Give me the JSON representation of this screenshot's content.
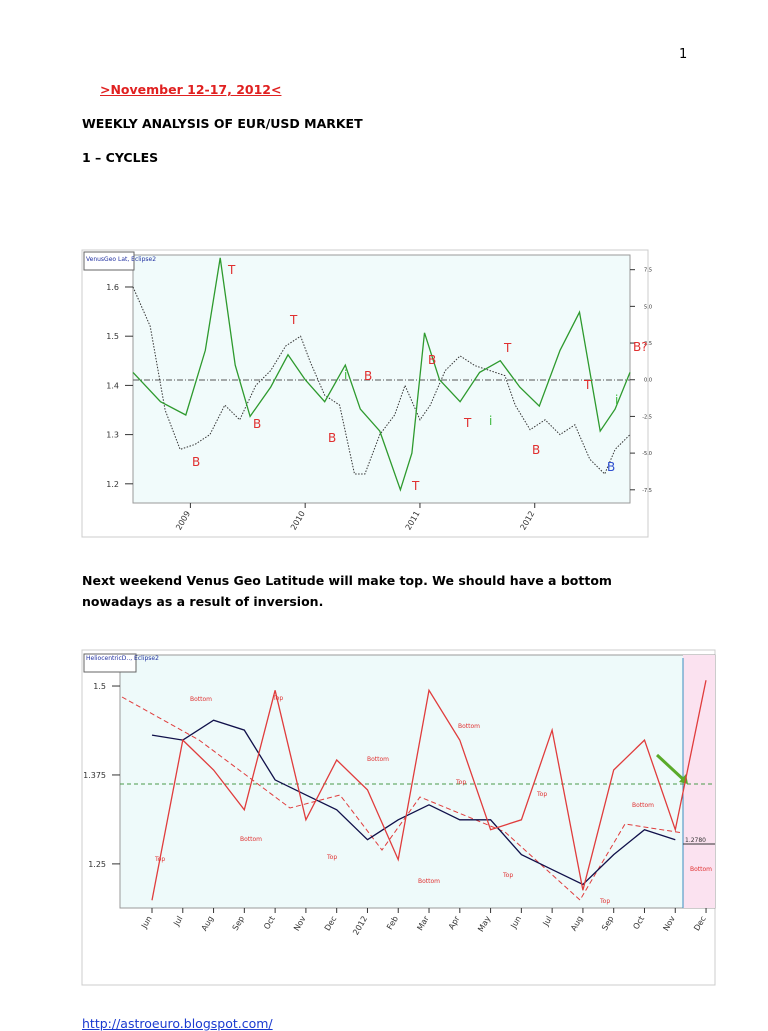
{
  "page_number": "1",
  "date_line": ">November 12-17, 2012<",
  "title": "WEEKLY ANALYSIS OF EUR/USD MARKET",
  "section": "1 – CYCLES",
  "paragraph": "Next weekend Venus Geo Latitude will make top. We should have a bottom nowadays as a result of inversion.",
  "footer_link": "http://astroeuro.blogspot.com/",
  "chart_data": [
    {
      "type": "line",
      "box_label": "VenusGeo Lat, Eclipse2",
      "xlim": [
        2008.5,
        2012.83
      ],
      "xticks": [
        2009,
        2010,
        2011,
        2012
      ],
      "ylim": [
        1.161,
        1.665
      ],
      "yticks": [
        1.2,
        1.3,
        1.4,
        1.5,
        1.6
      ],
      "y2lim": [
        -8.4,
        8.5
      ],
      "y2ticks": [
        7.5,
        {
          "value": 5,
          "label": "5.0"
        },
        2.5,
        {
          "value": 0,
          "label": "0.0"
        },
        -2.5,
        {
          "value": -5,
          "label": "-5.0"
        },
        -7.5
      ],
      "series": [
        {
          "color": "#333333",
          "dashed": true,
          "x": [
            2008.5,
            2008.65,
            2008.78,
            2008.91,
            2009.04,
            2009.17,
            2009.3,
            2009.43,
            2009.57,
            2009.7,
            2009.83,
            2009.96,
            2010.04,
            2010.17,
            2010.3,
            2010.43,
            2010.52,
            2010.65,
            2010.78,
            2010.87,
            2011.0,
            2011.09,
            2011.22,
            2011.35,
            2011.48,
            2011.61,
            2011.74,
            2011.83,
            2011.96,
            2012.09,
            2012.22,
            2012.35,
            2012.48,
            2012.61,
            2012.7,
            2012.83
          ],
          "values": [
            1.6,
            1.52,
            1.35,
            1.27,
            1.28,
            1.3,
            1.36,
            1.33,
            1.4,
            1.43,
            1.48,
            1.5,
            1.45,
            1.38,
            1.36,
            1.22,
            1.22,
            1.3,
            1.34,
            1.4,
            1.33,
            1.36,
            1.43,
            1.46,
            1.44,
            1.43,
            1.42,
            1.36,
            1.31,
            1.33,
            1.3,
            1.32,
            1.25,
            1.22,
            1.27,
            1.3
          ]
        },
        {
          "color": "#2e9a2e",
          "axis": "y2",
          "x": [
            2008.5,
            2008.74,
            2008.96,
            2009.13,
            2009.26,
            2009.39,
            2009.52,
            2009.7,
            2009.85,
            2010.0,
            2010.17,
            2010.35,
            2010.48,
            2010.65,
            2010.83,
            2010.93,
            2011.04,
            2011.17,
            2011.35,
            2011.52,
            2011.7,
            2011.87,
            2012.04,
            2012.22,
            2012.39,
            2012.57,
            2012.7,
            2012.83
          ],
          "values": [
            0.5,
            -1.5,
            -2.4,
            2,
            8.3,
            1,
            -2.5,
            -0.5,
            1.7,
            0,
            -1.5,
            1,
            -2,
            -3.5,
            -7.5,
            -5,
            3.2,
            0,
            -1.5,
            0.5,
            1.3,
            -0.5,
            -1.8,
            2,
            4.6,
            -3.5,
            -2,
            0.5
          ]
        }
      ],
      "annotations": [
        {
          "text": "T",
          "color": "#e03030"
        },
        {
          "text": "T",
          "color": "#e03030"
        },
        {
          "text": "B",
          "color": "#e03030"
        },
        {
          "text": "B",
          "color": "#e03030"
        },
        {
          "text": "B",
          "color": "#e03030"
        },
        {
          "text": "i",
          "color": "#3cb83c"
        },
        {
          "text": "B",
          "color": "#e03030"
        },
        {
          "text": "B",
          "color": "#e03030"
        },
        {
          "text": "T",
          "color": "#e03030"
        },
        {
          "text": "T",
          "color": "#e03030"
        },
        {
          "text": "i",
          "color": "#3cb83c"
        },
        {
          "text": "T",
          "color": "#e03030"
        },
        {
          "text": "B",
          "color": "#e03030"
        },
        {
          "text": "T",
          "color": "#e03030"
        },
        {
          "text": "B",
          "color": "#3050d0"
        },
        {
          "text": "i",
          "color": "#3cb83c"
        },
        {
          "text": "B?",
          "color": "#e03030"
        }
      ]
    },
    {
      "type": "line",
      "box_label": "HeliocentricD.., Eclipse2",
      "categories": [
        "Jun",
        "Jul",
        "Aug",
        "Sep",
        "Oct",
        "Nov",
        "Dec",
        "2012",
        "Feb",
        "Mar",
        "Apr",
        "May",
        "Jun",
        "Jul",
        "Aug",
        "Sep",
        "Oct",
        "Nov",
        "Dec"
      ],
      "ylim": [
        1.188,
        1.5436
      ],
      "yticks": [
        1.5,
        1.375,
        1.25
      ],
      "series": [
        {
          "color": "#10104a",
          "values": [
            1.431,
            1.424,
            1.452,
            1.438,
            1.368,
            1.347,
            1.326,
            1.284,
            1.312,
            1.333,
            1.312,
            1.312,
            1.263,
            1.242,
            1.221,
            1.263,
            1.298,
            1.284,
            null
          ]
        },
        {
          "color": "#e03c3c",
          "values": [
            1.199,
            1.424,
            1.382,
            1.326,
            1.494,
            1.312,
            1.396,
            1.354,
            1.256,
            1.494,
            1.424,
            1.298,
            1.312,
            1.438,
            1.213,
            1.382,
            1.424,
            1.298,
            1.508
          ]
        }
      ],
      "price_label": {
        "value": 1.278,
        "label": "1.2780"
      },
      "annotations": [
        {
          "text": "Bottom",
          "color": "#e03030"
        },
        {
          "text": "Top",
          "color": "#e03030"
        },
        {
          "text": "Bottom",
          "color": "#e03030"
        },
        {
          "text": "Top",
          "color": "#e03030"
        },
        {
          "text": "Bottom",
          "color": "#e03030"
        },
        {
          "text": "Top",
          "color": "#e03030"
        },
        {
          "text": "Bottom",
          "color": "#e03030"
        },
        {
          "text": "Bottom",
          "color": "#e03030"
        },
        {
          "text": "Top",
          "color": "#e03030"
        },
        {
          "text": "Top",
          "color": "#e03030"
        },
        {
          "text": "Top",
          "color": "#e03030"
        },
        {
          "text": "Bottom",
          "color": "#e03030"
        },
        {
          "text": "Top",
          "color": "#e03030"
        },
        {
          "text": "Bottom",
          "color": "#e03030"
        }
      ]
    }
  ]
}
